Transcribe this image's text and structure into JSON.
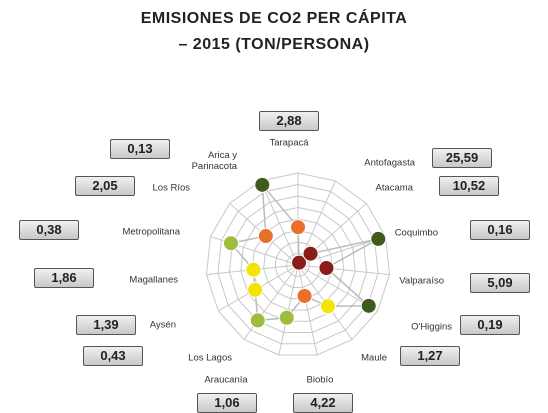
{
  "chart_data": {
    "type": "radar",
    "title": [
      "EMISIONES DE CO2 PER CÁPITA",
      "– 2015 (TON/PERSONA)"
    ],
    "categories": [
      "Tarapacá",
      "Antofagasta",
      "Atacama",
      "Coquimbo",
      "Valparaíso",
      "O'Higgins",
      "Maule",
      "Biobío",
      "Araucanía",
      "Los Lagos",
      "Aysén",
      "Magallanes",
      "Metropolitana",
      "Los Ríos",
      "Arica y Parinacota"
    ],
    "values": [
      2.88,
      25.59,
      10.52,
      0.16,
      5.09,
      0.19,
      1.27,
      4.22,
      1.06,
      0.43,
      1.39,
      1.86,
      0.38,
      2.05,
      0.13
    ],
    "value_labels": [
      "2,88",
      "25,59",
      "10,52",
      "0,16",
      "5,09",
      "0,19",
      "1,27",
      "4,22",
      "1,06",
      "0,43",
      "1,39",
      "1,86",
      "0,38",
      "2,05",
      "0,13"
    ],
    "colors": [
      "#e8702a",
      "#8b1c1c",
      "#8b1c1c",
      "#3f5c1e",
      "#8b1c1c",
      "#3f5c1e",
      "#f2e500",
      "#e8702a",
      "#9dbd3c",
      "#9dbd3c",
      "#f2e500",
      "#f2e500",
      "#9dbd3c",
      "#e8702a",
      "#3f5c1e"
    ],
    "rlim": [
      30,
      0.1
    ],
    "rscale": "log",
    "grid": true
  }
}
